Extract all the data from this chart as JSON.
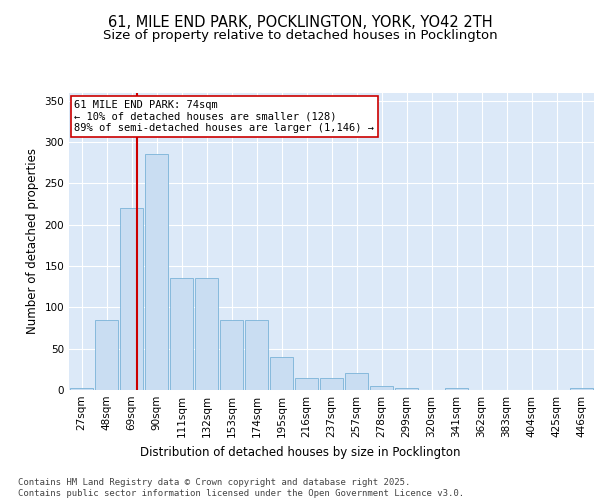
{
  "title_line1": "61, MILE END PARK, POCKLINGTON, YORK, YO42 2TH",
  "title_line2": "Size of property relative to detached houses in Pocklington",
  "xlabel": "Distribution of detached houses by size in Pocklington",
  "ylabel": "Number of detached properties",
  "categories": [
    "27sqm",
    "48sqm",
    "69sqm",
    "90sqm",
    "111sqm",
    "132sqm",
    "153sqm",
    "174sqm",
    "195sqm",
    "216sqm",
    "237sqm",
    "257sqm",
    "278sqm",
    "299sqm",
    "320sqm",
    "341sqm",
    "362sqm",
    "383sqm",
    "404sqm",
    "425sqm",
    "446sqm"
  ],
  "values": [
    2,
    85,
    220,
    285,
    135,
    135,
    85,
    85,
    40,
    15,
    15,
    20,
    5,
    2,
    0,
    2,
    0,
    0,
    0,
    0,
    2
  ],
  "bar_color": "#c9ddf2",
  "bar_edge_color": "#7ab3d8",
  "vline_color": "#cc0000",
  "annotation_text": "61 MILE END PARK: 74sqm\n← 10% of detached houses are smaller (128)\n89% of semi-detached houses are larger (1,146) →",
  "annotation_box_color": "#ffffff",
  "annotation_box_edge": "#cc0000",
  "ylim": [
    0,
    360
  ],
  "yticks": [
    0,
    50,
    100,
    150,
    200,
    250,
    300,
    350
  ],
  "background_color": "#dce9f8",
  "footer_text": "Contains HM Land Registry data © Crown copyright and database right 2025.\nContains public sector information licensed under the Open Government Licence v3.0.",
  "title_fontsize": 10.5,
  "subtitle_fontsize": 9.5,
  "axis_label_fontsize": 8.5,
  "tick_fontsize": 7.5,
  "annotation_fontsize": 7.5,
  "footer_fontsize": 6.5
}
